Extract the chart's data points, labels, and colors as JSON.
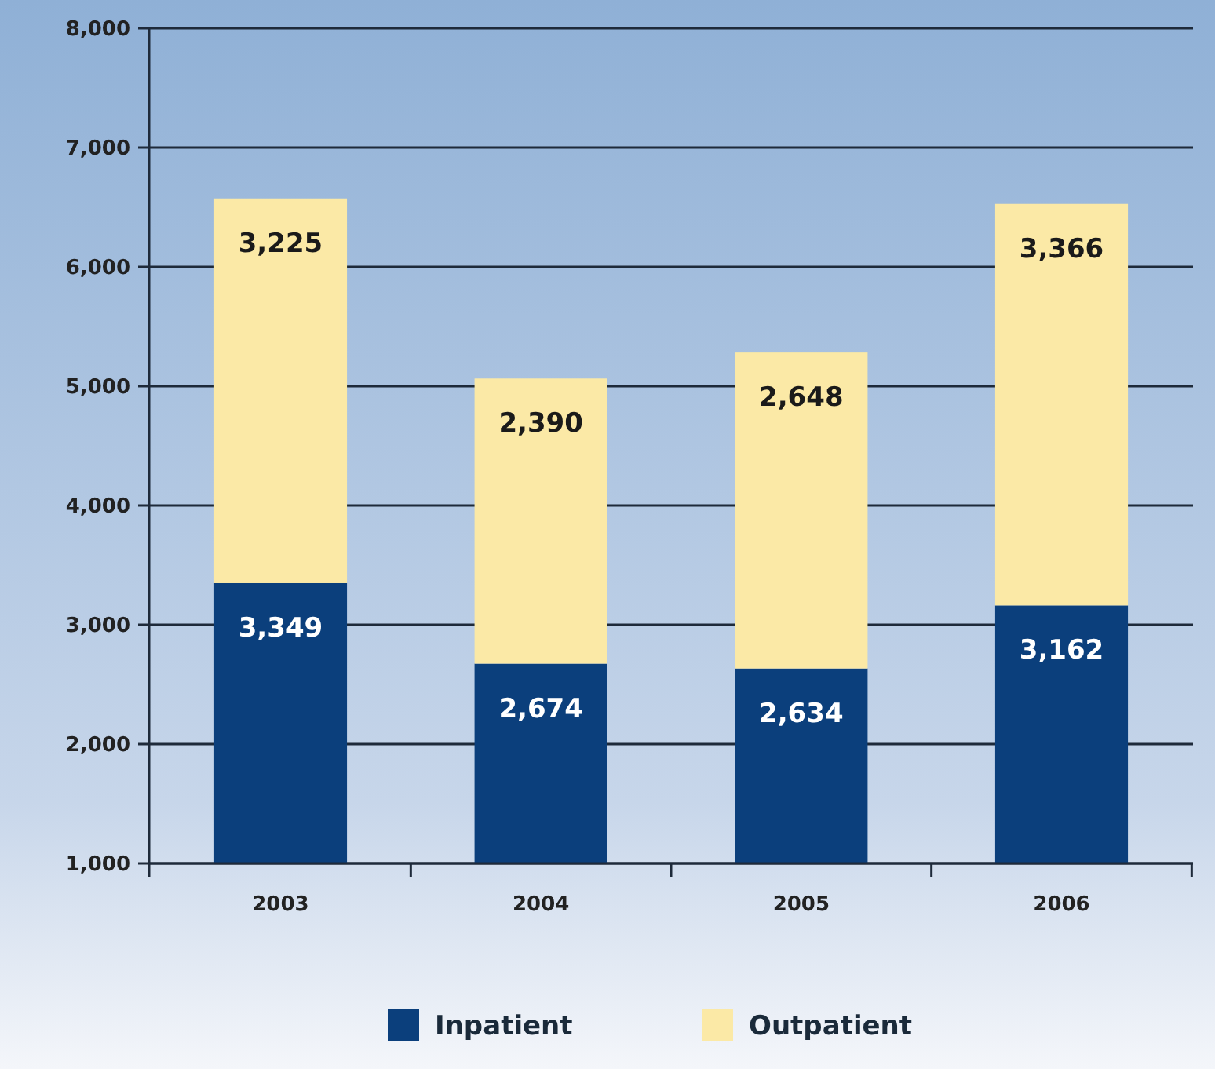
{
  "chart_data": {
    "type": "bar",
    "stacked": true,
    "categories": [
      "2003",
      "2004",
      "2005",
      "2006"
    ],
    "series": [
      {
        "name": "Inpatient",
        "color": "#0b3f7c",
        "values": [
          3349,
          2674,
          2634,
          3162
        ],
        "value_labels": [
          "3,349",
          "2,674",
          "2,634",
          "3,162"
        ]
      },
      {
        "name": "Outpatient",
        "color": "#fbe9a6",
        "values": [
          3225,
          2390,
          2648,
          3366
        ],
        "value_labels": [
          "3,225",
          "2,390",
          "2,648",
          "3,366"
        ]
      }
    ],
    "ylim": [
      1000,
      8000
    ],
    "yticks": [
      {
        "value": 1000,
        "label": "1,000"
      },
      {
        "value": 2000,
        "label": "2,000"
      },
      {
        "value": 3000,
        "label": "3,000"
      },
      {
        "value": 4000,
        "label": "4,000"
      },
      {
        "value": 5000,
        "label": "5,000"
      },
      {
        "value": 6000,
        "label": "6,000"
      },
      {
        "value": 7000,
        "label": "7,000"
      },
      {
        "value": 8000,
        "label": "8,000"
      }
    ],
    "grid": "y",
    "legend": "bottom"
  }
}
